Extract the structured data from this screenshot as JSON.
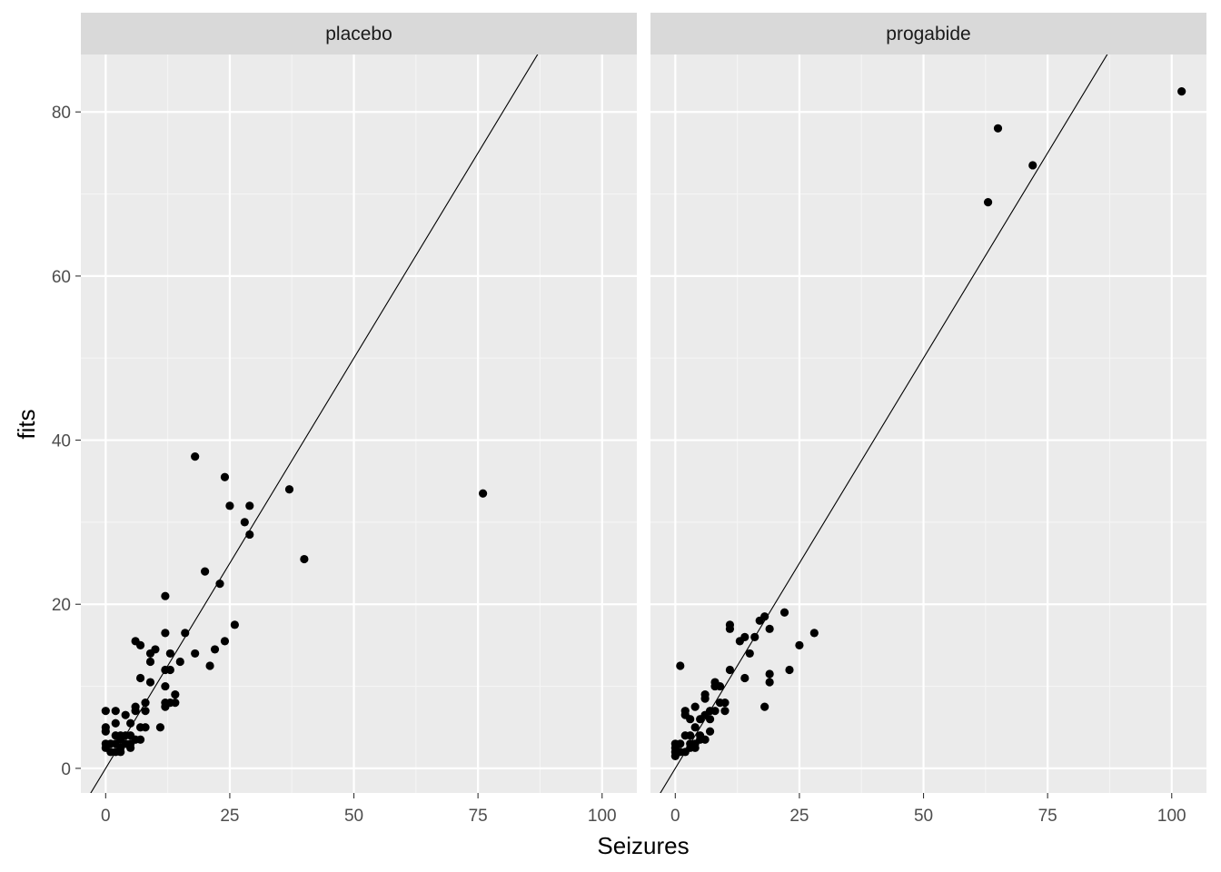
{
  "colors": {
    "panel_background": "#EBEBEB",
    "strip_background": "#D9D9D9",
    "grid_major": "#FFFFFF",
    "grid_minor": "#F5F5F5",
    "points": "#000000",
    "line": "#000000",
    "tick_label": "#4D4D4D"
  },
  "chart_data": {
    "type": "scatter",
    "facet_by": "treatment",
    "xlabel": "Seizures",
    "ylabel": "fits",
    "xlim": [
      -5,
      107
    ],
    "ylim": [
      -3,
      87
    ],
    "x_ticks": [
      0,
      25,
      50,
      75,
      100
    ],
    "y_ticks": [
      0,
      20,
      40,
      60,
      80
    ],
    "grid": true,
    "reference_line": {
      "slope": 1,
      "intercept": 0
    },
    "panels": [
      {
        "name": "placebo",
        "points": [
          [
            0,
            7
          ],
          [
            0,
            5
          ],
          [
            0,
            4.5
          ],
          [
            0,
            3
          ],
          [
            0,
            2.5
          ],
          [
            1,
            2
          ],
          [
            1,
            3
          ],
          [
            2,
            7
          ],
          [
            2,
            5.5
          ],
          [
            2,
            4
          ],
          [
            2,
            3
          ],
          [
            2,
            2
          ],
          [
            3,
            3.5
          ],
          [
            3,
            4
          ],
          [
            3,
            2
          ],
          [
            3,
            2.5
          ],
          [
            4,
            4
          ],
          [
            4,
            6.5
          ],
          [
            4,
            3
          ],
          [
            5,
            3
          ],
          [
            5,
            4
          ],
          [
            5,
            5.5
          ],
          [
            5,
            2.5
          ],
          [
            6,
            7
          ],
          [
            6,
            7.5
          ],
          [
            6,
            3.5
          ],
          [
            6,
            15.5
          ],
          [
            7,
            3.5
          ],
          [
            7,
            5
          ],
          [
            7,
            11
          ],
          [
            7,
            15
          ],
          [
            8,
            8
          ],
          [
            8,
            7
          ],
          [
            8,
            5
          ],
          [
            9,
            10.5
          ],
          [
            9,
            13
          ],
          [
            9,
            14
          ],
          [
            10,
            14.5
          ],
          [
            11,
            5
          ],
          [
            12,
            8
          ],
          [
            12,
            7.5
          ],
          [
            12,
            10
          ],
          [
            12,
            12
          ],
          [
            12,
            16.5
          ],
          [
            12,
            21
          ],
          [
            13,
            14
          ],
          [
            13,
            8
          ],
          [
            13,
            12
          ],
          [
            14,
            9
          ],
          [
            14,
            8
          ],
          [
            15,
            13
          ],
          [
            16,
            16.5
          ],
          [
            18,
            14
          ],
          [
            18,
            38
          ],
          [
            20,
            24
          ],
          [
            21,
            12.5
          ],
          [
            22,
            14.5
          ],
          [
            23,
            22.5
          ],
          [
            24,
            15.5
          ],
          [
            24,
            35.5
          ],
          [
            25,
            32
          ],
          [
            26,
            17.5
          ],
          [
            28,
            30
          ],
          [
            29,
            32
          ],
          [
            29,
            28.5
          ],
          [
            37,
            34
          ],
          [
            40,
            25.5
          ],
          [
            76,
            33.5
          ]
        ]
      },
      {
        "name": "progabide",
        "points": [
          [
            0,
            3
          ],
          [
            0,
            2.5
          ],
          [
            0,
            2
          ],
          [
            0,
            1.5
          ],
          [
            1,
            12.5
          ],
          [
            1,
            2
          ],
          [
            1,
            3
          ],
          [
            2,
            4
          ],
          [
            2,
            2
          ],
          [
            2,
            6.5
          ],
          [
            2,
            7
          ],
          [
            3,
            3
          ],
          [
            3,
            2.5
          ],
          [
            3,
            6
          ],
          [
            3,
            4
          ],
          [
            4,
            7.5
          ],
          [
            4,
            5
          ],
          [
            4,
            3
          ],
          [
            4,
            2.5
          ],
          [
            5,
            4
          ],
          [
            5,
            3.5
          ],
          [
            5,
            6
          ],
          [
            6,
            9
          ],
          [
            6,
            8.5
          ],
          [
            6,
            6.5
          ],
          [
            6,
            3.5
          ],
          [
            7,
            7
          ],
          [
            7,
            4.5
          ],
          [
            7,
            6
          ],
          [
            8,
            10
          ],
          [
            8,
            10.5
          ],
          [
            8,
            7
          ],
          [
            9,
            8
          ],
          [
            9,
            10
          ],
          [
            10,
            7
          ],
          [
            10,
            8
          ],
          [
            11,
            12
          ],
          [
            11,
            17
          ],
          [
            11,
            17.5
          ],
          [
            13,
            15.5
          ],
          [
            14,
            11
          ],
          [
            14,
            16
          ],
          [
            15,
            14
          ],
          [
            16,
            16
          ],
          [
            17,
            18
          ],
          [
            18,
            18.5
          ],
          [
            18,
            7.5
          ],
          [
            19,
            10.5
          ],
          [
            19,
            11.5
          ],
          [
            19,
            17
          ],
          [
            22,
            19
          ],
          [
            23,
            12
          ],
          [
            25,
            15
          ],
          [
            28,
            16.5
          ],
          [
            63,
            69
          ],
          [
            65,
            78
          ],
          [
            72,
            73.5
          ],
          [
            102,
            82.5
          ]
        ]
      }
    ]
  }
}
